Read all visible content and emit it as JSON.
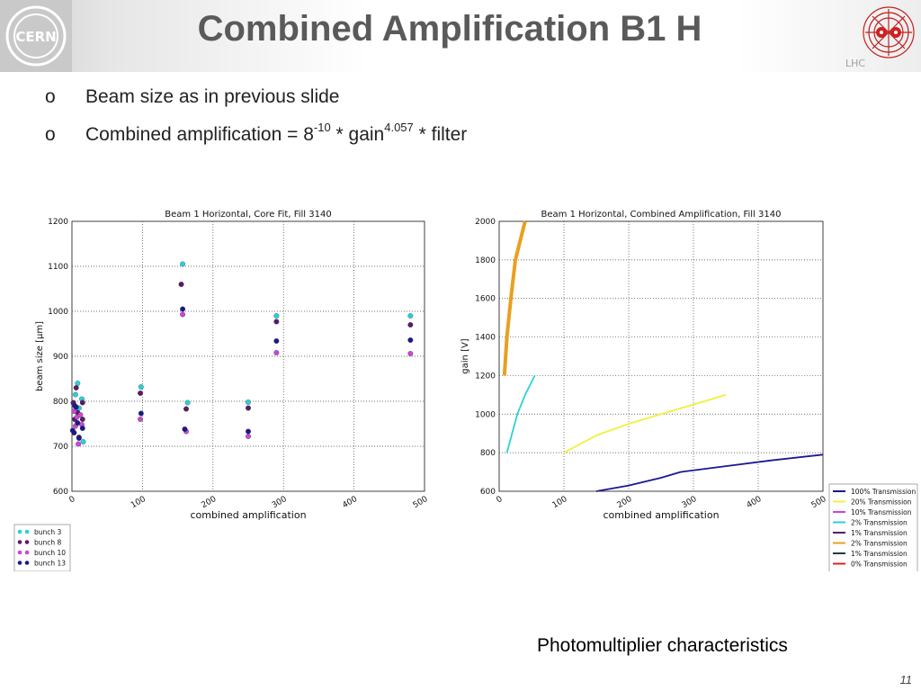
{
  "slide": {
    "title": "Combined Amplification B1 H",
    "bullets": [
      {
        "mark": "o",
        "text": "Beam size as in previous slide"
      },
      {
        "mark": "o",
        "text_before": "Combined amplification = 8",
        "exp1": "-10",
        "text_mid": " * gain",
        "exp2": "4.057",
        "text_after": " * filter"
      }
    ],
    "caption": "Photomultiplier characteristics",
    "page_number": "11",
    "logos": {
      "left": "CERN",
      "right": "LHC"
    }
  },
  "chart_data": [
    {
      "type": "scatter",
      "title": "Beam 1 Horizontal, Core Fit, Fill 3140",
      "xlabel": "combined amplification",
      "ylabel": "beam size [μm]",
      "xlim": [
        0,
        500
      ],
      "ylim": [
        600,
        1200
      ],
      "xticks": [
        0,
        100,
        200,
        300,
        400,
        500
      ],
      "yticks": [
        600,
        700,
        800,
        900,
        1000,
        1100,
        1200
      ],
      "grid": true,
      "legend_position": "below-left",
      "series": [
        {
          "name": "bunch 3",
          "color": "#2ad0d8",
          "points": [
            [
              2,
              795
            ],
            [
              5,
              815
            ],
            [
              8,
              840
            ],
            [
              10,
              785
            ],
            [
              14,
              805
            ],
            [
              16,
              710
            ],
            [
              98,
              832
            ],
            [
              157,
              1105
            ],
            [
              164,
              797
            ],
            [
              250,
              798
            ],
            [
              290,
              990
            ],
            [
              480,
              990
            ]
          ]
        },
        {
          "name": "bunch 8",
          "color": "#5a1a6a",
          "points": [
            [
              2,
              797
            ],
            [
              4,
              760
            ],
            [
              6,
              830
            ],
            [
              8,
              775
            ],
            [
              10,
              720
            ],
            [
              15,
              797
            ],
            [
              15,
              760
            ],
            [
              97,
              818
            ],
            [
              155,
              1060
            ],
            [
              162,
              783
            ],
            [
              250,
              785
            ],
            [
              290,
              977
            ],
            [
              480,
              970
            ]
          ]
        },
        {
          "name": "bunch 10",
          "color": "#c848d8",
          "points": [
            [
              3,
              778
            ],
            [
              5,
              745
            ],
            [
              7,
              765
            ],
            [
              9,
              705
            ],
            [
              12,
              770
            ],
            [
              14,
              748
            ],
            [
              97,
              760
            ],
            [
              157,
              993
            ],
            [
              162,
              733
            ],
            [
              250,
              722
            ],
            [
              290,
              908
            ],
            [
              480,
              906
            ]
          ]
        },
        {
          "name": "bunch 13",
          "color": "#1a1890",
          "points": [
            [
              1,
              735
            ],
            [
              3,
              730
            ],
            [
              4,
              790
            ],
            [
              6,
              787
            ],
            [
              8,
              752
            ],
            [
              10,
              718
            ],
            [
              15,
              740
            ],
            [
              98,
              773
            ],
            [
              157,
              1005
            ],
            [
              160,
              738
            ],
            [
              250,
              733
            ],
            [
              290,
              934
            ],
            [
              480,
              936
            ]
          ]
        }
      ]
    },
    {
      "type": "line",
      "title": "Beam 1 Horizontal, Combined Amplification, Fill 3140",
      "xlabel": "combined amplification",
      "ylabel": "gain [V]",
      "xlim": [
        0,
        500
      ],
      "ylim": [
        600,
        2000
      ],
      "xticks": [
        0,
        100,
        200,
        300,
        400,
        500
      ],
      "yticks": [
        600,
        800,
        1000,
        1200,
        1400,
        1600,
        1800,
        2000
      ],
      "grid": true,
      "legend_position": "below-right",
      "series": [
        {
          "name": "100% Transmission",
          "color": "#1a1890",
          "points": [
            [
              150,
              600
            ],
            [
              200,
              630
            ],
            [
              250,
              670
            ],
            [
              280,
              700
            ],
            [
              350,
              730
            ],
            [
              420,
              760
            ],
            [
              500,
              790
            ]
          ]
        },
        {
          "name": "20% Transmission",
          "color": "#f0f040",
          "points": [
            [
              100,
              800
            ],
            [
              150,
              890
            ],
            [
              200,
              950
            ],
            [
              250,
              1000
            ],
            [
              300,
              1050
            ],
            [
              350,
              1100
            ]
          ]
        },
        {
          "name": "10% Transmission",
          "color": "#c848d8",
          "points": []
        },
        {
          "name": "2% Transmission",
          "color": "#2ad0d8",
          "points": [
            [
              12,
              800
            ],
            [
              20,
              900
            ],
            [
              28,
              1000
            ],
            [
              40,
              1100
            ],
            [
              55,
              1200
            ]
          ]
        },
        {
          "name": "1% Transmission",
          "color": "#5a1a6a",
          "points": []
        },
        {
          "name": "2% Transmission",
          "color": "#e8a020",
          "points": [
            [
              8,
              1200
            ],
            [
              12,
              1400
            ],
            [
              18,
              1600
            ],
            [
              25,
              1800
            ],
            [
              40,
              2000
            ]
          ]
        },
        {
          "name": "1% Transmission",
          "color": "#1a4040",
          "points": []
        },
        {
          "name": "0% Transmission",
          "color": "#e02020",
          "points": []
        }
      ]
    }
  ]
}
